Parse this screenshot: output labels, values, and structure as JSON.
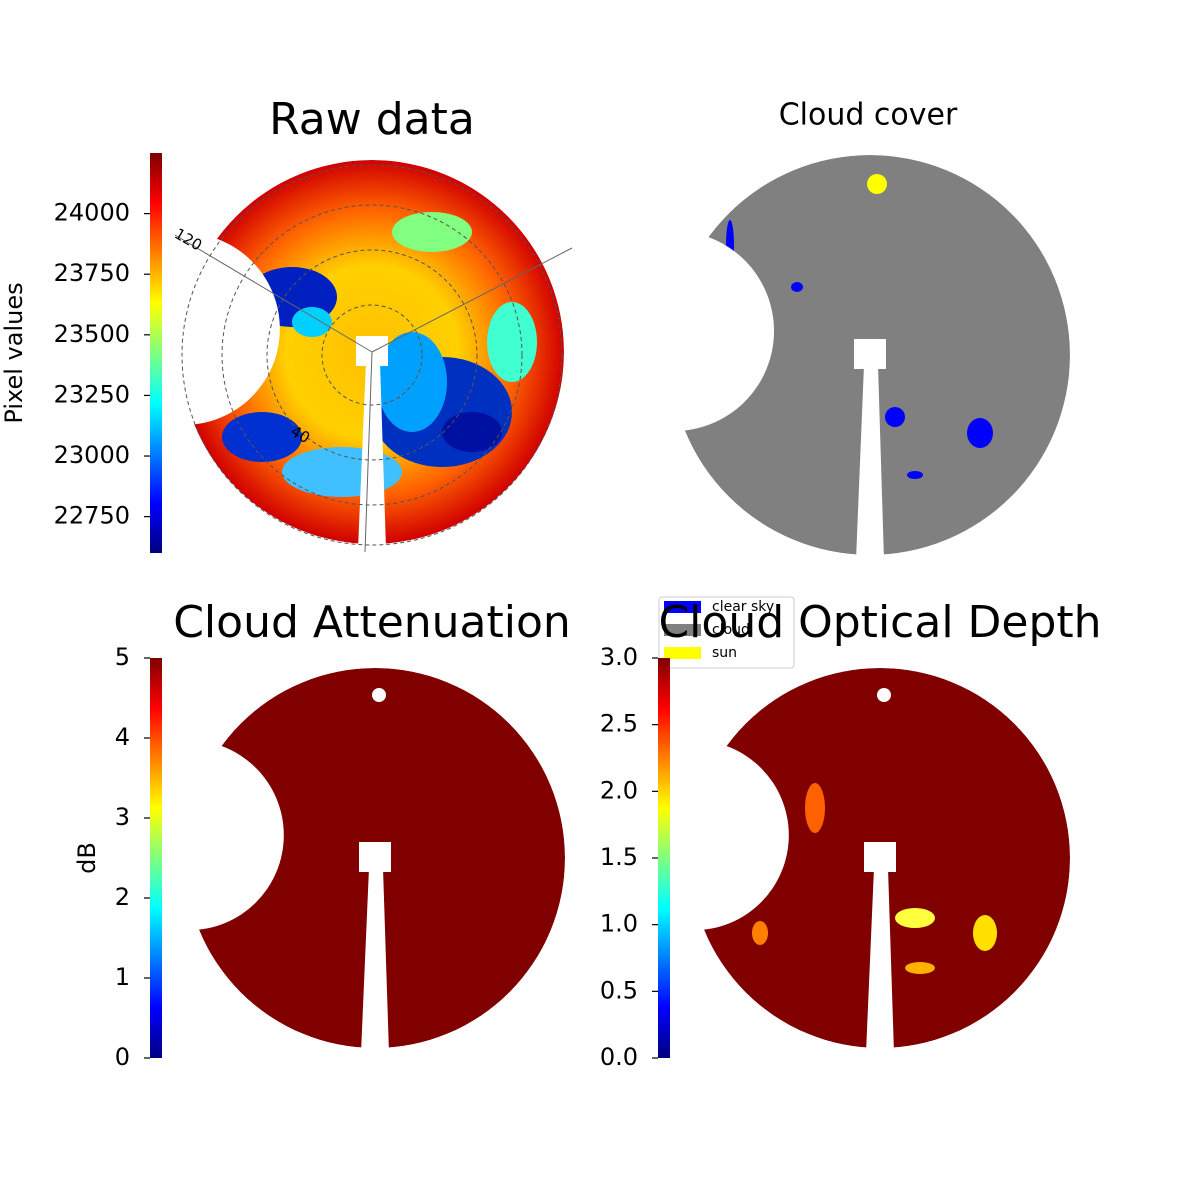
{
  "chart_data": [
    {
      "type": "image",
      "title": "Raw data",
      "colorbar": {
        "label": "Pixel values",
        "lim": [
          22600,
          24250
        ],
        "ticks": [
          22750,
          23000,
          23250,
          23500,
          23750,
          24000
        ]
      },
      "annotations": [
        "120",
        "40"
      ]
    },
    {
      "type": "image",
      "title": "Cloud cover",
      "series": [
        {
          "name": "clear sky",
          "color": "#0000ff"
        },
        {
          "name": "cloud",
          "color": "#808080"
        },
        {
          "name": "sun",
          "color": "#ffff00"
        }
      ]
    },
    {
      "type": "image",
      "title": "Cloud Attenuation",
      "colorbar": {
        "label": "dB",
        "lim": [
          0,
          5
        ],
        "ticks": [
          0,
          1,
          2,
          3,
          4,
          5
        ]
      }
    },
    {
      "type": "image",
      "title": "Cloud Optical Depth",
      "colorbar": {
        "lim": [
          0,
          3
        ],
        "ticks": [
          {
            "value": 0,
            "label": "0.0"
          },
          0.5,
          {
            "value": 1,
            "label": "1.0"
          },
          1.5,
          {
            "value": 2,
            "label": "2.0"
          },
          2.5,
          {
            "value": 3,
            "label": "3.0"
          }
        ]
      }
    }
  ]
}
